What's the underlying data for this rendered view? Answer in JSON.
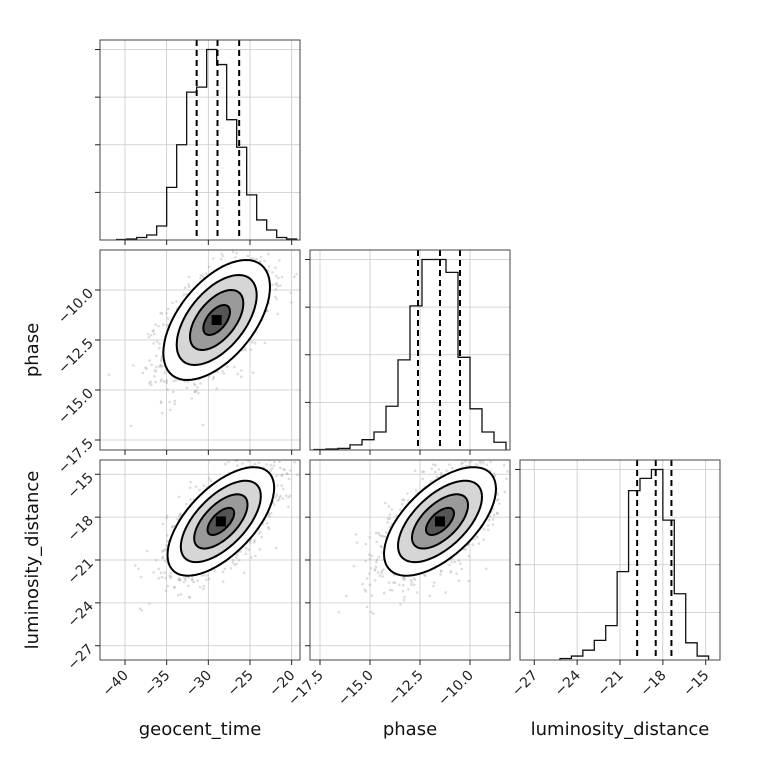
{
  "chart_data": {
    "type": "corner",
    "parameters": [
      {
        "name": "geocent_time",
        "label": "geocent_time",
        "range": [
          -43,
          -19
        ],
        "ticks": [
          -40,
          -35,
          -30,
          -25,
          -20
        ],
        "quantiles": [
          -31.4,
          -28.9,
          -26.3
        ]
      },
      {
        "name": "phase",
        "label": "phase",
        "range": [
          -18.0,
          -8.0
        ],
        "ticks": [
          -17.5,
          -15.0,
          -12.5,
          -10.0
        ],
        "quantiles": [
          -12.6,
          -11.5,
          -10.5
        ]
      },
      {
        "name": "luminosity_distance",
        "label": "luminosity_distance",
        "range": [
          -28.0,
          -14.0
        ],
        "ticks": [
          -27,
          -24,
          -21,
          -18,
          -15
        ],
        "quantiles": [
          -19.8,
          -18.5,
          -17.4
        ]
      }
    ],
    "tick_labels": {
      "geocent_time": [
        "−40",
        "−35",
        "−30",
        "−25",
        "−20"
      ],
      "phase_y": [
        "−10.0",
        "−12.5",
        "−15.0",
        "−17.5"
      ],
      "phase_x": [
        "−17.5",
        "−15.0",
        "−12.5",
        "−10.0"
      ],
      "luminosity_distance_y": [
        "−15",
        "−18",
        "−21",
        "−24",
        "−27"
      ],
      "luminosity_distance_x": [
        "−27",
        "−24",
        "−21",
        "−18",
        "−15"
      ]
    },
    "histograms": {
      "geocent_time": {
        "bin_edges": [
          -41,
          -39.8,
          -38.6,
          -37.4,
          -36.2,
          -35,
          -33.8,
          -32.6,
          -31.4,
          -30.2,
          -29,
          -27.8,
          -26.6,
          -25.4,
          -24.2,
          -23,
          -21.8,
          -20.6,
          -19.4
        ],
        "counts": [
          1,
          2,
          5,
          10,
          28,
          105,
          190,
          295,
          305,
          380,
          350,
          240,
          185,
          90,
          40,
          20,
          5,
          2
        ]
      },
      "phase": {
        "bin_edges": [
          -17.8,
          -17.2,
          -16.6,
          -16.0,
          -15.4,
          -14.8,
          -14.2,
          -13.6,
          -13.0,
          -12.4,
          -11.8,
          -11.2,
          -10.6,
          -10.0,
          -9.4,
          -8.8,
          -8.2
        ],
        "counts": [
          1,
          2,
          3,
          10,
          20,
          35,
          85,
          175,
          280,
          370,
          370,
          345,
          180,
          80,
          35,
          15
        ]
      },
      "luminosity_distance": {
        "bin_edges": [
          -25.2,
          -24.4,
          -23.6,
          -22.8,
          -22.0,
          -21.2,
          -20.4,
          -19.6,
          -18.8,
          -18.0,
          -17.2,
          -16.4,
          -15.6,
          -14.8
        ],
        "counts": [
          3,
          8,
          20,
          40,
          70,
          180,
          345,
          370,
          388,
          285,
          135,
          35,
          8
        ]
      }
    },
    "joint": [
      {
        "x": "geocent_time",
        "y": "phase",
        "mean": [
          -29.0,
          -11.5
        ],
        "sd": [
          3.2,
          1.5
        ],
        "rho": 0.55
      },
      {
        "x": "geocent_time",
        "y": "luminosity_distance",
        "mean": [
          -28.5,
          -18.3
        ],
        "sd": [
          3.2,
          1.9
        ],
        "rho": 0.62
      },
      {
        "x": "phase",
        "y": "luminosity_distance",
        "mean": [
          -11.5,
          -18.3
        ],
        "sd": [
          1.4,
          1.9
        ],
        "rho": 0.6
      }
    ],
    "contour_levels_sigma": [
      0.5,
      1.0,
      1.5,
      2.0
    ],
    "grid": true,
    "xlabel_bottom": [
      "geocent_time",
      "phase",
      "luminosity_distance"
    ],
    "ylabel_left": [
      "phase",
      "luminosity_distance"
    ]
  }
}
